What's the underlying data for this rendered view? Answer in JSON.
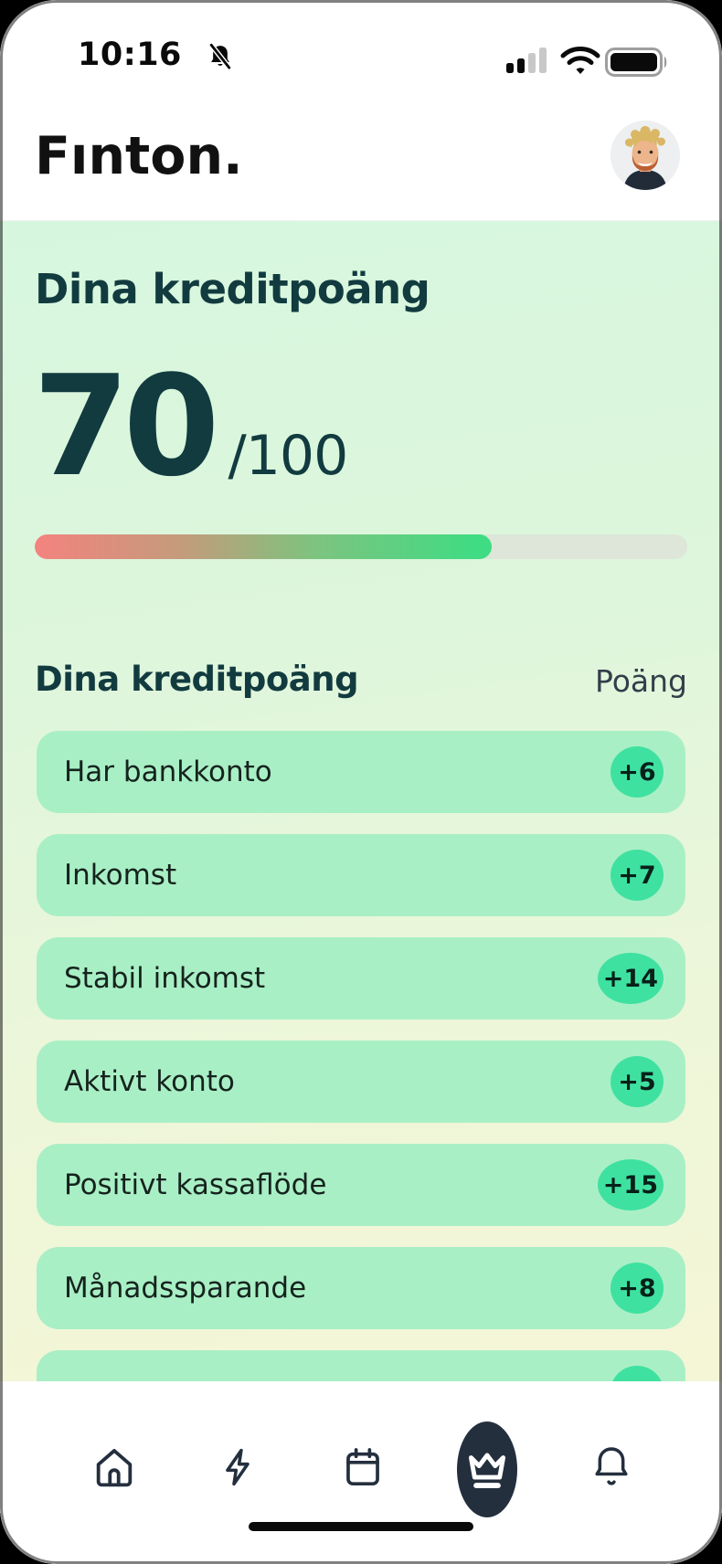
{
  "status_bar": {
    "time": "10:16",
    "mute_icon": "bell-slash-icon",
    "signal_icon": "cellular-signal-icon",
    "wifi_icon": "wifi-icon",
    "battery_icon": "battery-full-icon"
  },
  "header": {
    "logo": "Fınton.",
    "avatar": "profile-photo"
  },
  "score_card": {
    "title": "Dina kreditpoäng",
    "score": "70",
    "denominator": "/100",
    "progress_percent": 70
  },
  "breakdown": {
    "title": "Dina kreditpoäng",
    "points_label": "Poäng",
    "rows": [
      {
        "label": "Har bankkonto",
        "points": "+6"
      },
      {
        "label": "Inkomst",
        "points": "+7"
      },
      {
        "label": "Stabil inkomst",
        "points": "+14"
      },
      {
        "label": "Aktivt konto",
        "points": "+5"
      },
      {
        "label": "Positivt kassaflöde",
        "points": "+15"
      },
      {
        "label": "Månadssparande",
        "points": "+8"
      }
    ],
    "partial_row_visible": true
  },
  "nav": {
    "items": [
      {
        "name": "home",
        "icon": "home-icon",
        "active": false
      },
      {
        "name": "activity",
        "icon": "lightning-icon",
        "active": false
      },
      {
        "name": "calendar",
        "icon": "calendar-icon",
        "active": false
      },
      {
        "name": "premium",
        "icon": "crown-icon",
        "active": true
      },
      {
        "name": "notifications",
        "icon": "bell-icon",
        "active": false
      }
    ]
  },
  "colors": {
    "dark-teal": "#123b40",
    "card-mint": "#a9efc5",
    "accent-green": "#3fe1a1",
    "nav-dark": "#242f3e",
    "bar-red": "#f2837e",
    "bar-green": "#3fdc83",
    "track": "#dde6d8"
  }
}
